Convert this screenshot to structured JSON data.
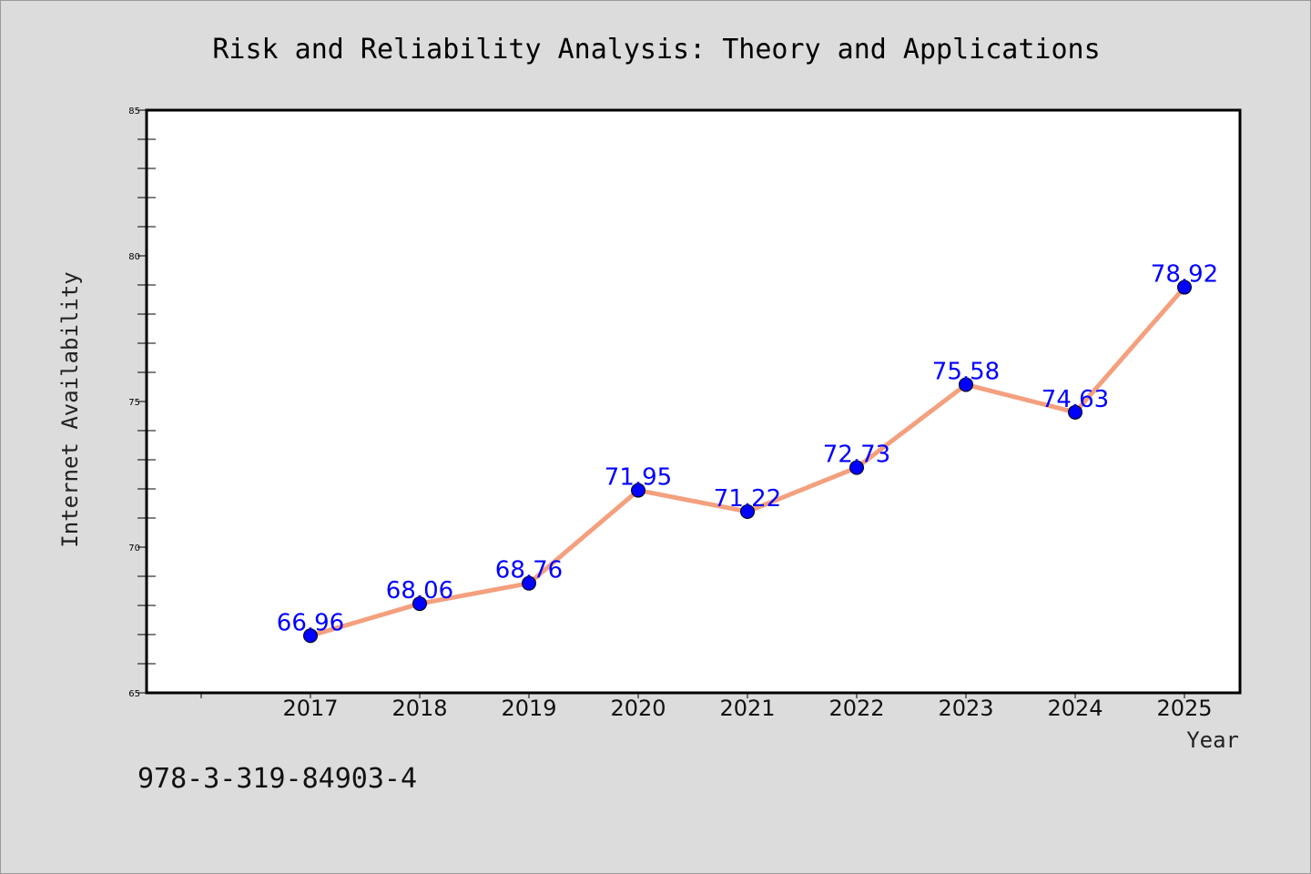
{
  "figure": {
    "background_color": "#dcdcdc",
    "isbn": "978-3-319-84903-4"
  },
  "chart_data": {
    "type": "line",
    "title": "Risk and Reliability Analysis: Theory and Applications",
    "xlabel": "Year",
    "ylabel": "Internet Availability",
    "categories": [
      "2017",
      "2018",
      "2019",
      "2020",
      "2021",
      "2022",
      "2023",
      "2024",
      "2025"
    ],
    "series": [
      {
        "values": [
          66.96,
          68.06,
          68.76,
          71.95,
          71.22,
          72.73,
          75.58,
          74.63,
          78.92
        ],
        "value_labels": [
          "66.96",
          "68.06",
          "68.76",
          "71.95",
          "71.22",
          "72.73",
          "75.58",
          "74.63",
          "78.92"
        ],
        "line_color": "#f4a07e",
        "marker_color": "#0000ff",
        "label_color": "#0000ff"
      }
    ],
    "ylim": [
      65,
      85
    ],
    "yticks": [
      65,
      70,
      75,
      80,
      85
    ],
    "ytick_labels": [
      "65",
      "70",
      "75",
      "80",
      "85"
    ],
    "grid": false,
    "legend": "none",
    "plot_background": "#ffffff"
  }
}
